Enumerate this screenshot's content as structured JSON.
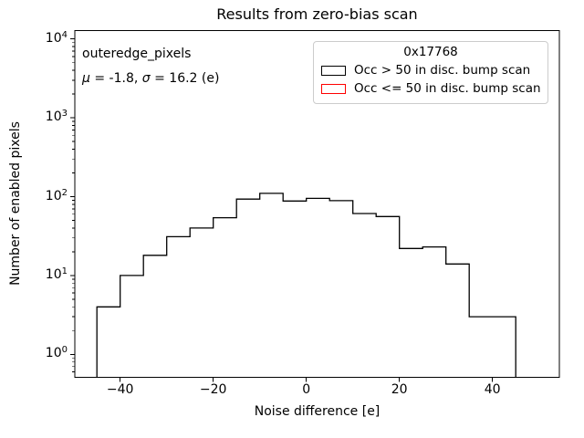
{
  "title": "Results from zero-bias scan",
  "annotation": {
    "line1": "outeredge_pixels",
    "mu_symbol": "μ",
    "mu_text": " = -1.8, ",
    "sigma_symbol": "σ",
    "sigma_text": " = 16.2 (e)"
  },
  "legend": {
    "title": "0x17768",
    "entries": [
      {
        "label": "Occ > 50 in disc. bump scan",
        "color": "#000000"
      },
      {
        "label": "Occ <= 50 in disc. bump scan",
        "color": "#ff0000"
      }
    ]
  },
  "chart_data": {
    "type": "bar",
    "subtype": "step-histogram",
    "title": "Results from zero-bias scan",
    "xlabel": "Noise difference [e]",
    "ylabel": "Number of enabled pixels",
    "y_scale": "log",
    "xlim": [
      -49.7,
      54.4
    ],
    "ylim": [
      0.56,
      12800
    ],
    "grid": false,
    "legend_position": "upper right",
    "bin_edges": [
      -45,
      -40,
      -35,
      -30,
      -25,
      -20,
      -15,
      -10,
      -5,
      0,
      5,
      10,
      15,
      20,
      25,
      30,
      35,
      40,
      45
    ],
    "series": [
      {
        "name": "Occ > 50 in disc. bump scan",
        "color": "#000000",
        "counts": [
          4,
          10,
          18,
          31,
          40,
          54,
          93,
          110,
          88,
          95,
          89,
          61,
          56,
          22,
          23,
          14,
          3,
          3
        ]
      },
      {
        "name": "Occ <= 50 in disc. bump scan",
        "color": "#ff0000",
        "counts": []
      }
    ],
    "x_ticks": [
      -40,
      -20,
      0,
      20,
      40
    ],
    "x_tick_labels": [
      "−40",
      "−20",
      "0",
      "20",
      "40"
    ],
    "y_ticks": [
      1,
      10,
      100,
      1000,
      10000
    ],
    "y_tick_labels": [
      {
        "base": "10",
        "exp": "0"
      },
      {
        "base": "10",
        "exp": "1"
      },
      {
        "base": "10",
        "exp": "2"
      },
      {
        "base": "10",
        "exp": "3"
      },
      {
        "base": "10",
        "exp": "4"
      }
    ]
  }
}
